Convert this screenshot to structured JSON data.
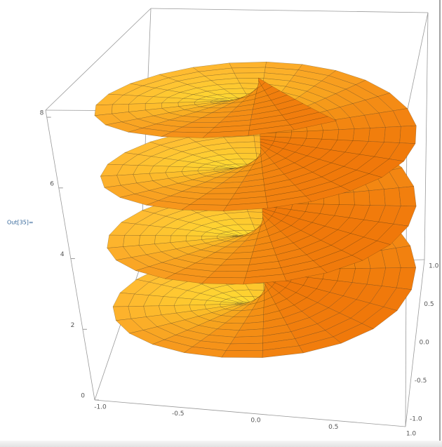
{
  "cell_label": "Out[35]=",
  "plot": {
    "z_ticks": [
      "0",
      "2",
      "4",
      "6",
      "8"
    ],
    "x_ticks": [
      "-1.0",
      "-0.5",
      "0.0",
      "0.5",
      "1.0"
    ],
    "y_ticks": [
      "-1.0",
      "-0.5",
      "0.0",
      "0.5",
      "1.0"
    ]
  }
}
